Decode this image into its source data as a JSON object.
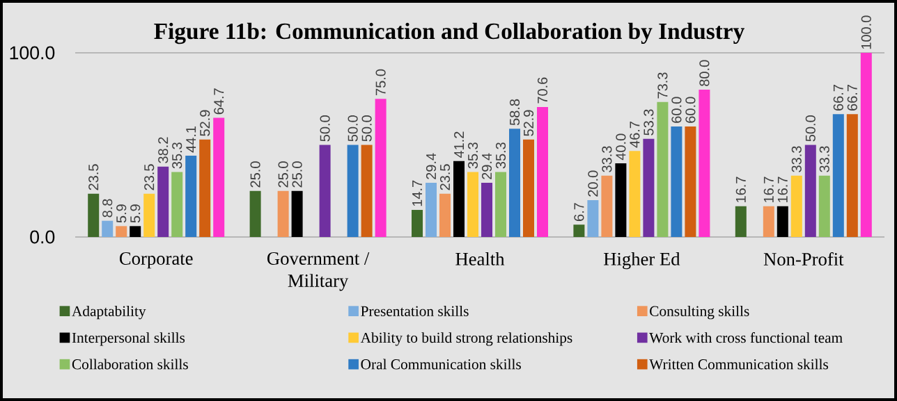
{
  "chart_data": {
    "type": "bar",
    "title": "Figure 11b: Communication and Collaboration by Industry",
    "categories": [
      "Corporate",
      "Government / Military",
      "Health",
      "Higher Ed",
      "Non-Profit"
    ],
    "series": [
      {
        "name": "Adaptability",
        "color": "#3f6b2a",
        "values": [
          23.5,
          25.0,
          14.7,
          6.7,
          16.7
        ],
        "value_labels": [
          "23.5",
          "25.0",
          "14.7",
          "6.7",
          "16.7"
        ]
      },
      {
        "name": "Presentation skills",
        "color": "#7aaddf",
        "values": [
          8.8,
          null,
          29.4,
          20.0,
          null
        ],
        "value_labels": [
          "8.8",
          null,
          "29.4",
          "20.0",
          null
        ]
      },
      {
        "name": "Consulting skills",
        "color": "#f0955a",
        "values": [
          5.9,
          25.0,
          23.5,
          33.3,
          16.7
        ],
        "value_labels": [
          "5.9",
          "25.0",
          "23.5",
          "33.3",
          "16.7"
        ]
      },
      {
        "name": "Interpersonal skills",
        "color": "#000000",
        "values": [
          5.9,
          25.0,
          41.2,
          40.0,
          16.7
        ],
        "value_labels": [
          "5.9",
          "25.0",
          "41.2",
          "40.0",
          "16.7"
        ]
      },
      {
        "name": "Ability to build strong relationships",
        "color": "#ffca35",
        "values": [
          23.5,
          null,
          35.3,
          46.7,
          33.3
        ],
        "value_labels": [
          "23.5",
          null,
          "35.3",
          "46.7",
          "33.3"
        ]
      },
      {
        "name": "Work with cross functional team",
        "color": "#7030a0",
        "values": [
          38.2,
          50.0,
          29.4,
          53.3,
          50.0
        ],
        "value_labels": [
          "38.2",
          "50.0",
          "29.4",
          "53.3",
          "50.0"
        ]
      },
      {
        "name": "Collaboration skills",
        "color": "#8cc063",
        "values": [
          35.3,
          null,
          35.3,
          73.3,
          33.3
        ],
        "value_labels": [
          "35.3",
          null,
          "35.3",
          "73.3",
          "33.3"
        ]
      },
      {
        "name": "Oral Communication skills",
        "color": "#2f7bc4",
        "values": [
          44.1,
          50.0,
          58.8,
          60.0,
          66.7
        ],
        "value_labels": [
          "44.1",
          "50.0",
          "58.8",
          "60.0",
          "66.7"
        ]
      },
      {
        "name": "Written Communication skills",
        "color": "#d15f11",
        "values": [
          52.9,
          50.0,
          52.9,
          60.0,
          66.7
        ],
        "value_labels": [
          "52.9",
          "50.0",
          "52.9",
          "60.0",
          "66.7"
        ]
      },
      {
        "color": "#ff33cc",
        "values": [
          64.7,
          75.0,
          70.6,
          80.0,
          100.0
        ],
        "value_labels": [
          "64.7",
          "75.0",
          "70.6",
          "80.0",
          "100.0"
        ]
      }
    ],
    "ylim": [
      0,
      100
    ],
    "yticks": [
      {
        "value": 0,
        "label": "0.0"
      },
      {
        "value": 100,
        "label": "100.0"
      }
    ],
    "legend": "bottom"
  }
}
